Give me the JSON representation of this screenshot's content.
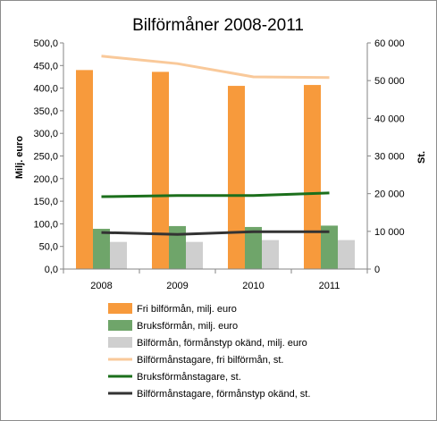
{
  "chart_data": {
    "type": "bar",
    "title": "Bilförmåner 2008-2011",
    "categories": [
      "2008",
      "2009",
      "2010",
      "2011"
    ],
    "ylabel_left": "Milj. euro",
    "ylabel_right": "St.",
    "ylim_left": [
      0,
      500
    ],
    "ylim_right": [
      0,
      60000
    ],
    "yticks_left": [
      "0,0",
      "50,0",
      "100,0",
      "150,0",
      "200,0",
      "250,0",
      "300,0",
      "350,0",
      "400,0",
      "450,0",
      "500,0"
    ],
    "yticks_right": [
      "0",
      "10 000",
      "20 000",
      "30 000",
      "40 000",
      "50 000",
      "60 000"
    ],
    "grid": false,
    "legend_position": "bottom",
    "bar_series": [
      {
        "name": "Fri bilförmån, milj. euro",
        "values": [
          440,
          436,
          405,
          407
        ],
        "color": "#f79a3c"
      },
      {
        "name": "Bruksförmån, milj. euro",
        "values": [
          89,
          95,
          93,
          96
        ],
        "color": "#6fa56a"
      },
      {
        "name": "Bilförmån, förmånstyp okänd, milj. euro",
        "values": [
          60,
          60,
          64,
          64
        ],
        "color": "#cfcfcf"
      }
    ],
    "line_series": [
      {
        "name": "Bilförmånstagare, fri bilförmån, st.",
        "values": [
          56500,
          54500,
          51000,
          50800
        ],
        "color": "#f9c99a"
      },
      {
        "name": "Bruksförmånstagare, st.",
        "values": [
          19200,
          19500,
          19500,
          20200
        ],
        "color": "#1b6f1b"
      },
      {
        "name": "Bilförmånstagare, förmånstyp okänd, st.",
        "values": [
          9700,
          9200,
          9900,
          9900
        ],
        "color": "#333333"
      }
    ]
  }
}
